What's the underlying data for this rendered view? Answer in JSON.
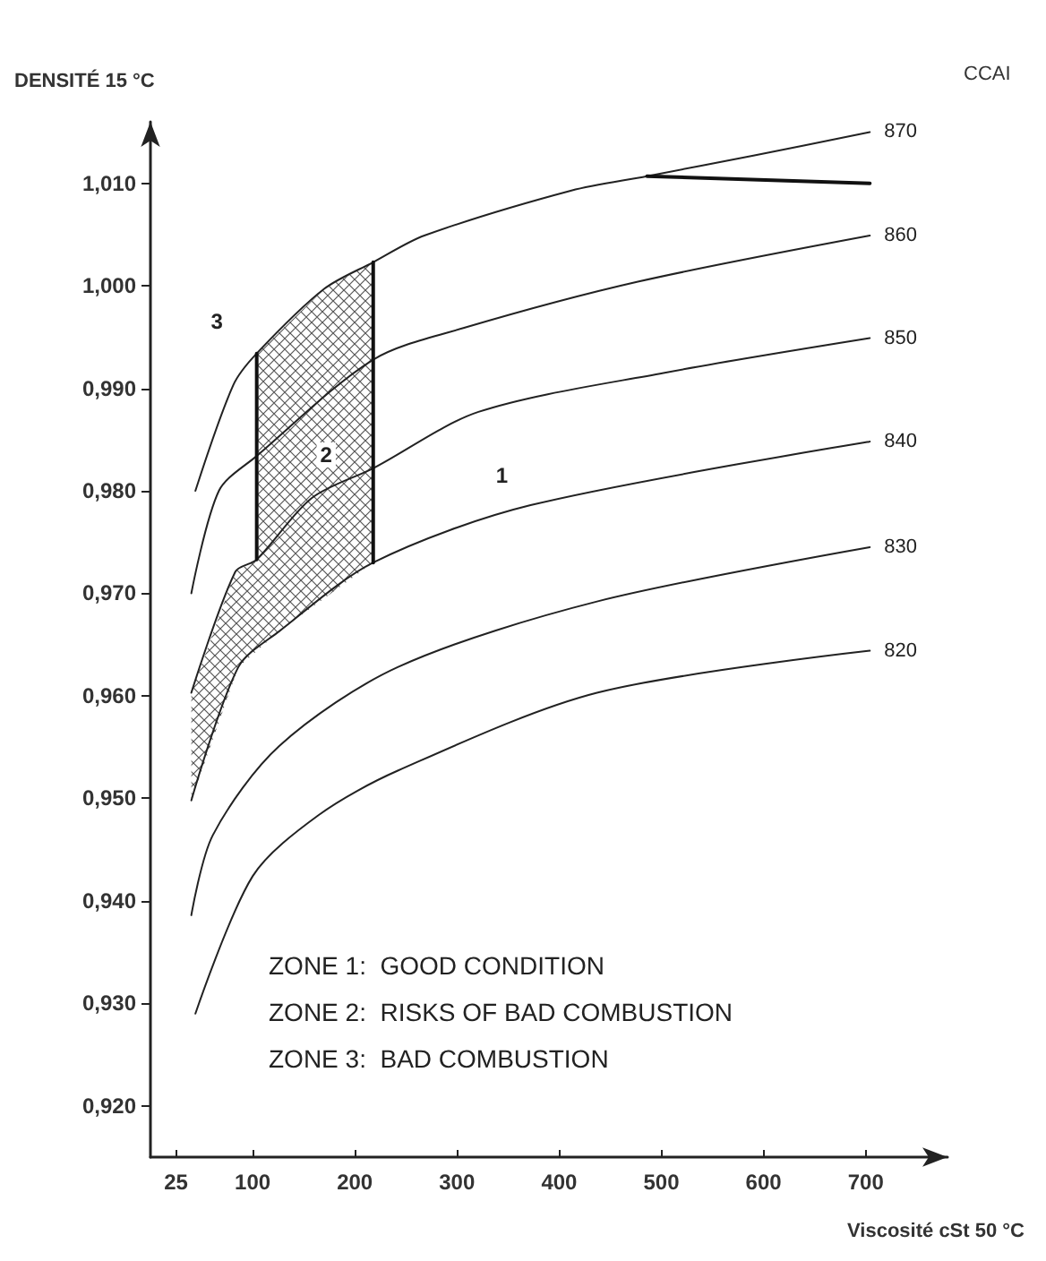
{
  "chart_data": {
    "type": "line",
    "xlabel": "Viscosité cSt 50 °C",
    "ylabel": "DENSITÉ 15 °C",
    "legend_title": "CCAI",
    "xlim": [
      0,
      780
    ],
    "ylim": [
      0.915,
      1.016
    ],
    "xticks": [
      25,
      100,
      200,
      300,
      400,
      500,
      600,
      700
    ],
    "yticks": [
      {
        "value": 0.92,
        "label": "0,920"
      },
      {
        "value": 0.93,
        "label": "0,930"
      },
      {
        "value": 0.94,
        "label": "0,940"
      },
      {
        "value": 0.95,
        "label": "0,950"
      },
      {
        "value": 0.96,
        "label": "0,960"
      },
      {
        "value": 0.97,
        "label": "0,970"
      },
      {
        "value": 0.98,
        "label": "0,980"
      },
      {
        "value": 0.99,
        "label": "0,990"
      },
      {
        "value": 1.0,
        "label": "1,000"
      },
      {
        "value": 1.01,
        "label": "1,010"
      }
    ],
    "grid": false,
    "legend": false,
    "marker": "none",
    "line_style": "solid",
    "series": [
      {
        "name": "870",
        "color": "#222222",
        "x": [
          44,
          81,
          104,
          170,
          218,
          268,
          412,
          486,
          590,
          704
        ],
        "values": [
          0.98,
          0.9903,
          0.9934,
          0.9997,
          1.0023,
          1.0049,
          1.0093,
          1.0107,
          1.0127,
          1.015
        ]
      },
      {
        "name": "860",
        "color": "#222222",
        "x": [
          40,
          67,
          104,
          218,
          307,
          477,
          704
        ],
        "values": [
          0.97,
          0.98,
          0.9834,
          0.9928,
          0.9959,
          1.0004,
          1.0049
        ]
      },
      {
        "name": "850",
        "color": "#222222",
        "x": [
          40,
          83,
          104,
          158,
          218,
          321,
          502,
          704
        ],
        "values": [
          0.9603,
          0.9721,
          0.9733,
          0.9793,
          0.9822,
          0.9877,
          0.9915,
          0.9949
        ]
      },
      {
        "name": "840",
        "color": "#222222",
        "x": [
          40,
          86,
          126,
          218,
          372,
          704
        ],
        "values": [
          0.9498,
          0.9628,
          0.9663,
          0.973,
          0.9786,
          0.9848
        ]
      },
      {
        "name": "830",
        "color": "#222222",
        "x": [
          40,
          61,
          126,
          242,
          437,
          704
        ],
        "values": [
          0.9386,
          0.9464,
          0.9551,
          0.9628,
          0.9692,
          0.9745
        ]
      },
      {
        "name": "820",
        "color": "#222222",
        "x": [
          44,
          100,
          165,
          242,
          437,
          704
        ],
        "values": [
          0.929,
          0.9424,
          0.9484,
          0.9527,
          0.9603,
          0.9644
        ]
      },
      {
        "color": "#111111",
        "x": [
          104,
          104
        ],
        "values": [
          0.9733,
          0.9934
        ]
      },
      {
        "color": "#111111",
        "x": [
          218,
          218
        ],
        "values": [
          0.973,
          1.0023
        ]
      },
      {
        "color": "#111111",
        "x": [
          486,
          704
        ],
        "values": [
          1.0107,
          1.01
        ]
      }
    ],
    "annotations": [
      "3",
      "2",
      "1",
      "ZONE 1:  GOOD CONDITION",
      "ZONE 2:  RISKS OF BAD COMBUSTION",
      "ZONE 3:  BAD COMBUSTION"
    ]
  }
}
